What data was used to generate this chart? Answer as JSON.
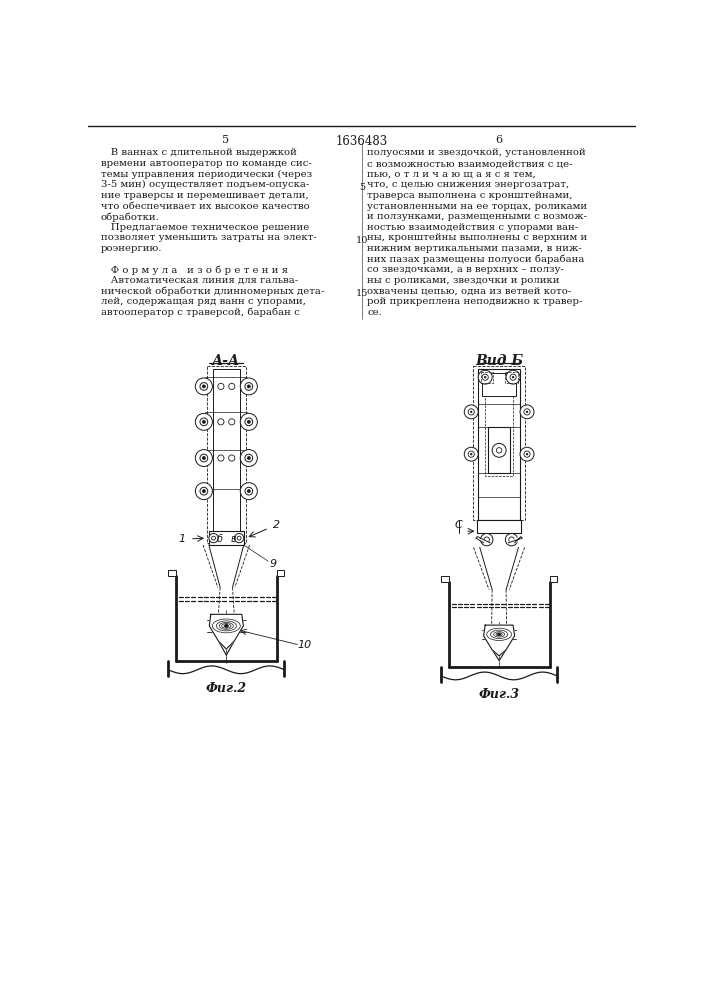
{
  "page_number_left": "5",
  "patent_number": "1636483",
  "page_number_right": "6",
  "background_color": "#ffffff",
  "text_color": "#1a1a1a",
  "left_column_text": [
    "   В ваннах с длительной выдержкой",
    "времени автооператор по команде сис-",
    "темы управления периодически (через",
    "3-5 мин) осуществляет подъем-опуска-",
    "ние траверсы и перемешивает детали,",
    "что обеспечивает их высокое качество",
    "обработки.",
    "   Предлагаемое техническое решение",
    "позволяет уменьшить затраты на элект-",
    "роэнергию.",
    "",
    "   Ф о р м у л а   и з о б р е т е н и я",
    "   Автоматическая линия для гальва-",
    "нической обработки длинномерных дета-",
    "лей, содержащая ряд ванн с упорами,",
    "автооператор с траверсой, барабан с"
  ],
  "right_column_text": [
    "полуосями и звездочкой, установленной",
    "с возможностью взаимодействия с це-",
    "пью, о т л и ч а ю щ а я с я тем,",
    "что, с целью снижения энергозатрат,",
    "траверса выполнена с кронштейнами,",
    "установленными на ее торцах, роликами",
    "и ползунками, размещенными с возмож-",
    "ностью взаимодействия с упорами ван-",
    "ны, кронштейны выполнены с верхним и",
    "нижним вертикальными пазами, в ниж-",
    "них пазах размещены полуоси барабана",
    "со звездочками, а в верхних – ползу-",
    "ны с роликами, звездочки и ролики",
    "охвачены цепью, одна из ветвей кото-",
    "рой прикреплена неподвижно к травер-",
    "се."
  ],
  "fig2_label": "А-А",
  "fig3_label": "Вид Б",
  "fig2_caption": "Фиг.2",
  "fig3_caption": "Фиг.3"
}
